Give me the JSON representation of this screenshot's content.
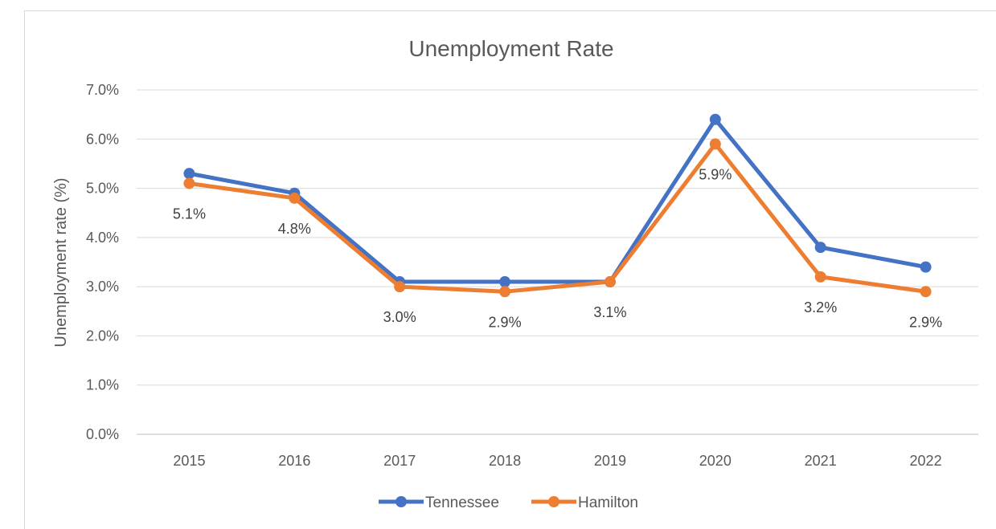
{
  "chart_data": {
    "type": "line",
    "title": "Unemployment Rate",
    "xlabel": "",
    "ylabel": "Unemployment rate (%)",
    "categories": [
      "2015",
      "2016",
      "2017",
      "2018",
      "2019",
      "2020",
      "2021",
      "2022"
    ],
    "ylim": [
      0,
      7
    ],
    "yticks": [
      "0.0%",
      "1.0%",
      "2.0%",
      "3.0%",
      "4.0%",
      "5.0%",
      "6.0%",
      "7.0%"
    ],
    "grid": true,
    "legend_position": "bottom",
    "series": [
      {
        "name": "Tennessee",
        "color": "#4472c4",
        "values": [
          5.3,
          4.9,
          3.1,
          3.1,
          3.1,
          6.4,
          3.8,
          3.4
        ]
      },
      {
        "name": "Hamilton",
        "color": "#ed7d31",
        "values": [
          5.1,
          4.8,
          3.0,
          2.9,
          3.1,
          5.9,
          3.2,
          2.9
        ],
        "data_labels": [
          "5.1%",
          "4.8%",
          "3.0%",
          "2.9%",
          "3.1%",
          "5.9%",
          "3.2%",
          "2.9%"
        ]
      }
    ]
  }
}
